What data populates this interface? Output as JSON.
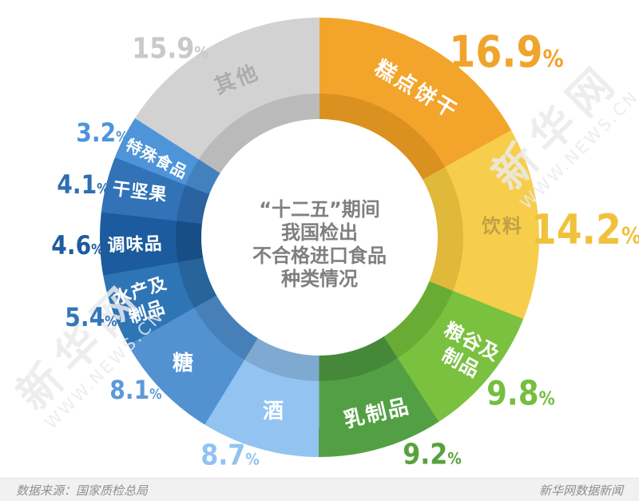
{
  "title": {
    "lines": [
      "“十二五”期间",
      "我国检出",
      "不合格进口食品",
      "种类情况"
    ],
    "color": "#7f7f7f"
  },
  "chart_data": {
    "type": "pie",
    "subtype": "donut",
    "title": "“十二五”期间我国检出不合格进口食品种类情况",
    "start_angle_deg": 0,
    "direction": "clockwise",
    "unit": "%",
    "categories": [
      "糕点饼干",
      "饮料",
      "粮谷及制品",
      "乳制品",
      "酒",
      "糖",
      "水产及制品",
      "调味品",
      "干坚果",
      "特殊食品",
      "其他"
    ],
    "values": [
      16.9,
      14.2,
      9.8,
      9.2,
      8.7,
      8.1,
      5.4,
      4.6,
      4.1,
      3.2,
      15.9
    ],
    "slices": [
      {
        "label": "糕点饼干",
        "value": 16.9,
        "pct_label": "16.9",
        "color": "#F3A52B",
        "inner_color": "#DB9120",
        "pct_color": "#F0A42B",
        "label_color": "#FFFFFF"
      },
      {
        "label": "饮料",
        "value": 14.2,
        "pct_label": "14.2",
        "color": "#F6CE4B",
        "inner_color": "#E0B93B",
        "pct_color": "#F0C23C",
        "label_color": "#BFA145"
      },
      {
        "label": "粮谷及制品",
        "value": 9.8,
        "pct_label": "9.8",
        "color": "#7AC13F",
        "inner_color": "#69AC35",
        "pct_color": "#76BE3F",
        "label_color": "#FFFFFF"
      },
      {
        "label": "乳制品",
        "value": 9.2,
        "pct_label": "9.2",
        "color": "#53A044",
        "inner_color": "#468839",
        "pct_color": "#57A23D",
        "label_color": "#FFFFFF"
      },
      {
        "label": "酒",
        "value": 8.7,
        "pct_label": "8.7",
        "color": "#93C3F0",
        "inner_color": "#7EA9D1",
        "pct_color": "#92C3F0",
        "label_color": "#FFFFFF"
      },
      {
        "label": "糖",
        "value": 8.1,
        "pct_label": "8.1",
        "color": "#5392D1",
        "inner_color": "#4780B8",
        "pct_color": "#5C9AD8",
        "label_color": "#FFFFFF"
      },
      {
        "label": "水产及制品",
        "value": 5.4,
        "pct_label": "5.4",
        "color": "#2E75B6",
        "inner_color": "#27649C",
        "pct_color": "#3377BB",
        "label_color": "#FFFFFF"
      },
      {
        "label": "调味品",
        "value": 4.6,
        "pct_label": "4.6",
        "color": "#1C5C9E",
        "inner_color": "#174E86",
        "pct_color": "#1D5C9E",
        "label_color": "#FFFFFF"
      },
      {
        "label": "干坚果",
        "value": 4.1,
        "pct_label": "4.1",
        "color": "#3173B6",
        "inner_color": "#2A63A0",
        "pct_color": "#2E6FB2",
        "label_color": "#FFFFFF"
      },
      {
        "label": "特殊食品",
        "value": 3.2,
        "pct_label": "3.2",
        "color": "#4E94D9",
        "inner_color": "#4280BE",
        "pct_color": "#4D94DA",
        "label_color": "#FFFFFF"
      },
      {
        "label": "其他",
        "value": 15.9,
        "pct_label": "15.9",
        "color": "#D2D2D2",
        "inner_color": "#BABABA",
        "pct_color": "#C9C9C9",
        "label_color": "#ACACAC"
      }
    ]
  },
  "watermark": {
    "cn": "新华网",
    "en": "WWW.NEWS.CN"
  },
  "footer": {
    "source": "数据来源：国家质检总局",
    "credit": "新华网数据新闻"
  }
}
